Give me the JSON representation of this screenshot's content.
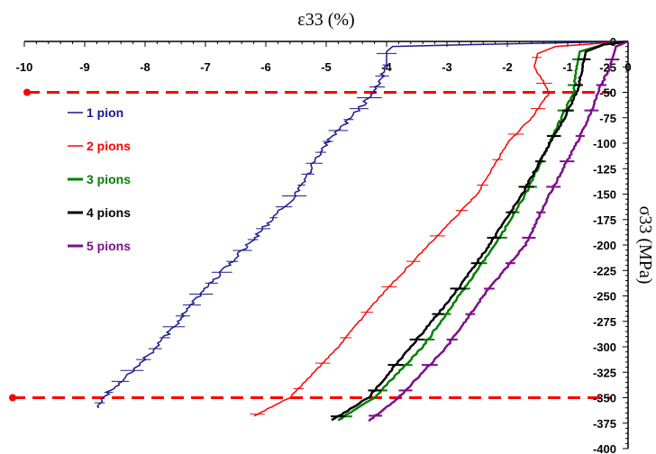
{
  "chart_data": {
    "type": "line",
    "xlabel": "ε33 (%)",
    "ylabel": "σ33 (MPa)",
    "xlim": [
      -10,
      0
    ],
    "ylim": [
      -400,
      0
    ],
    "x_ticks": [
      "-10",
      "-9",
      "-8",
      "-7",
      "-6",
      "-5",
      "-4",
      "-3",
      "-2",
      "-1",
      "0"
    ],
    "y_ticks": [
      "0",
      "-25",
      "-50",
      "-75",
      "-100",
      "-125",
      "-150",
      "-175",
      "-200",
      "-225",
      "-250",
      "-275",
      "-300",
      "-325",
      "-350",
      "-375",
      "-400"
    ],
    "x_axis_position": "top",
    "y_axis_position": "right",
    "legend_position": "left",
    "reference_lines": [
      {
        "y": -50,
        "color": "#ff0000",
        "style": "dashed"
      },
      {
        "y": -350,
        "color": "#ff0000",
        "style": "dashed"
      }
    ],
    "series": [
      {
        "name": "1 pion",
        "color": "#1a1a8c",
        "points": [
          [
            0,
            0
          ],
          [
            -0.8,
            -1
          ],
          [
            -2.5,
            -3
          ],
          [
            -3.9,
            -5
          ],
          [
            -4.0,
            -10
          ],
          [
            -4.0,
            -25
          ],
          [
            -4.2,
            -50
          ],
          [
            -4.6,
            -75
          ],
          [
            -5.0,
            -100
          ],
          [
            -5.5,
            -150
          ],
          [
            -6.3,
            -200
          ],
          [
            -7.1,
            -250
          ],
          [
            -7.8,
            -300
          ],
          [
            -8.7,
            -350
          ],
          [
            -8.8,
            -360
          ]
        ]
      },
      {
        "name": "2 pions",
        "color": "#ff0000",
        "points": [
          [
            0,
            0
          ],
          [
            -0.5,
            -2
          ],
          [
            -1.2,
            -5
          ],
          [
            -1.5,
            -12
          ],
          [
            -1.55,
            -25
          ],
          [
            -1.3,
            -50
          ],
          [
            -1.6,
            -75
          ],
          [
            -2.0,
            -100
          ],
          [
            -2.5,
            -150
          ],
          [
            -3.3,
            -200
          ],
          [
            -4.1,
            -250
          ],
          [
            -4.8,
            -300
          ],
          [
            -5.6,
            -350
          ],
          [
            -6.2,
            -368
          ]
        ]
      },
      {
        "name": "3 pions",
        "color": "#008000",
        "points": [
          [
            0,
            0
          ],
          [
            -0.4,
            -3
          ],
          [
            -0.8,
            -10
          ],
          [
            -0.85,
            -25
          ],
          [
            -0.9,
            -50
          ],
          [
            -1.1,
            -75
          ],
          [
            -1.3,
            -100
          ],
          [
            -1.7,
            -150
          ],
          [
            -2.2,
            -200
          ],
          [
            -2.8,
            -250
          ],
          [
            -3.4,
            -300
          ],
          [
            -4.2,
            -350
          ],
          [
            -4.8,
            -372
          ]
        ]
      },
      {
        "name": "4 pions",
        "color": "#000000",
        "points": [
          [
            0,
            0
          ],
          [
            -0.4,
            -3
          ],
          [
            -0.7,
            -10
          ],
          [
            -0.75,
            -25
          ],
          [
            -0.85,
            -50
          ],
          [
            -1.05,
            -75
          ],
          [
            -1.3,
            -100
          ],
          [
            -1.75,
            -150
          ],
          [
            -2.3,
            -200
          ],
          [
            -2.9,
            -250
          ],
          [
            -3.6,
            -300
          ],
          [
            -4.3,
            -350
          ],
          [
            -4.9,
            -372
          ]
        ]
      },
      {
        "name": "5 pions",
        "color": "#7d0f8c",
        "points": [
          [
            0,
            0
          ],
          [
            -0.2,
            -5
          ],
          [
            -0.3,
            -25
          ],
          [
            -0.5,
            -50
          ],
          [
            -0.65,
            -75
          ],
          [
            -0.85,
            -100
          ],
          [
            -1.3,
            -150
          ],
          [
            -1.7,
            -200
          ],
          [
            -2.4,
            -250
          ],
          [
            -3.0,
            -300
          ],
          [
            -3.8,
            -350
          ],
          [
            -4.3,
            -373
          ]
        ]
      }
    ]
  }
}
